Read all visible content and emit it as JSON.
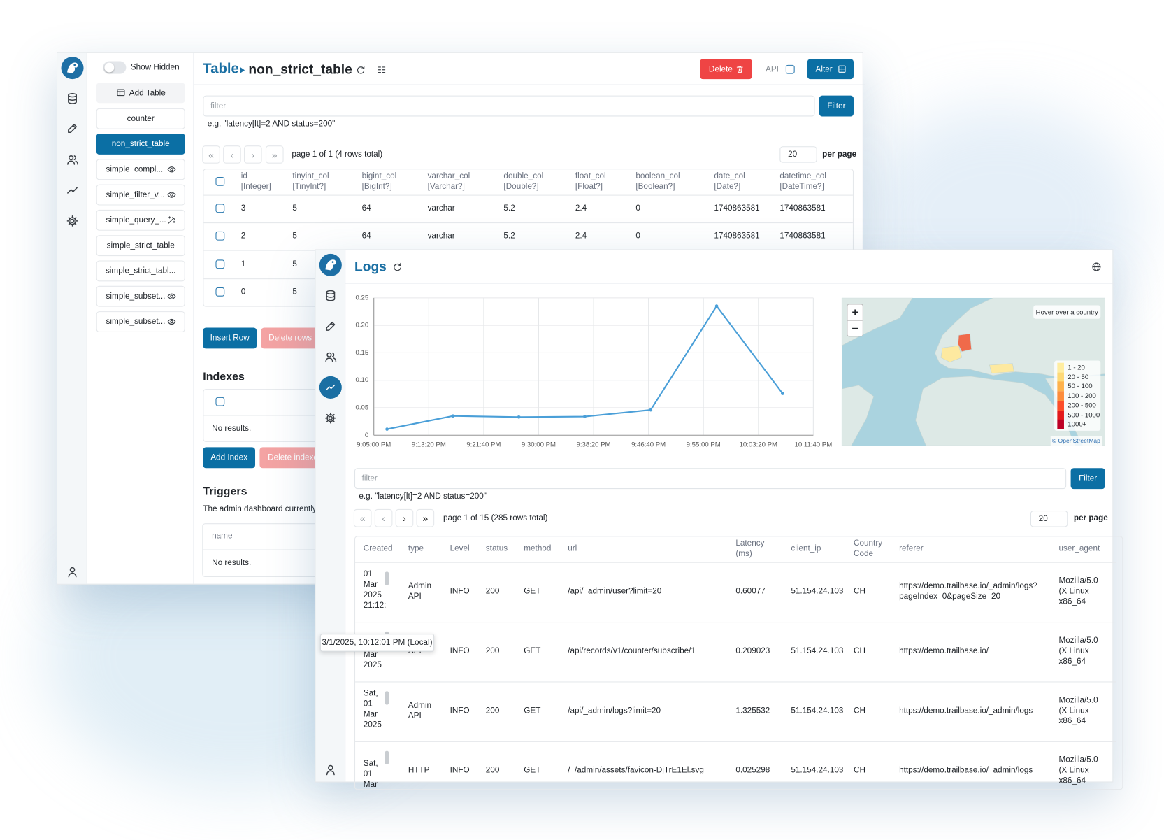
{
  "table_window": {
    "sidebar": {
      "toggle_label": "Show Hidden",
      "add_table": "Add Table",
      "tables": [
        "counter",
        "non_strict_table",
        "simple_compl...",
        "simple_filter_v...",
        "simple_query_...",
        "simple_strict_table",
        "simple_strict_tabl...",
        "simple_subset...",
        "simple_subset..."
      ]
    },
    "header": {
      "section": "Table",
      "table_name": "non_strict_table",
      "delete": "Delete",
      "api": "API",
      "alter": "Alter"
    },
    "filter": {
      "placeholder": "filter",
      "button": "Filter",
      "hint": "e.g. \"latency[lt]=2 AND status=200\""
    },
    "pagination": {
      "buttons": [
        "«",
        "‹",
        "›",
        "»"
      ],
      "info": "page 1 of 1 (4 rows total)",
      "page_size": "20",
      "per_page": "per page"
    },
    "table": {
      "columns": [
        {
          "name": "id",
          "type": "[Integer]"
        },
        {
          "name": "tinyint_col",
          "type": "[TinyInt?]"
        },
        {
          "name": "bigint_col",
          "type": "[BigInt?]"
        },
        {
          "name": "varchar_col",
          "type": "[Varchar?]"
        },
        {
          "name": "double_col",
          "type": "[Double?]"
        },
        {
          "name": "float_col",
          "type": "[Float?]"
        },
        {
          "name": "boolean_col",
          "type": "[Boolean?]"
        },
        {
          "name": "date_col",
          "type": "[Date?]"
        },
        {
          "name": "datetime_col",
          "type": "[DateTime?]"
        }
      ],
      "rows": [
        [
          "3",
          "5",
          "64",
          "varchar",
          "5.2",
          "2.4",
          "0",
          "1740863581",
          "1740863581"
        ],
        [
          "2",
          "5",
          "64",
          "varchar",
          "5.2",
          "2.4",
          "0",
          "1740863581",
          "1740863581"
        ],
        [
          "1",
          "5"
        ],
        [
          "0",
          "5"
        ]
      ]
    },
    "row_actions": {
      "insert": "Insert Row",
      "delete": "Delete rows"
    },
    "indexes": {
      "title": "Indexes",
      "empty": "No results.",
      "add": "Add Index",
      "delete": "Delete indexe"
    },
    "triggers": {
      "title": "Triggers",
      "description": "The admin dashboard currently",
      "column": "name",
      "empty": "No results."
    }
  },
  "logs_window": {
    "header": {
      "title": "Logs"
    },
    "chart": {
      "type": "line",
      "x": [
        "9:07:00 PM",
        "9:17:00 PM",
        "9:27:00 PM",
        "9:37:00 PM",
        "9:47:00 PM",
        "9:57:00 PM",
        "10:07:00 PM"
      ],
      "series": [
        {
          "color": "#4a9fd8",
          "values": [
            0.011,
            0.035,
            0.033,
            0.034,
            0.046,
            0.235,
            0.076
          ]
        }
      ],
      "xlim": [
        "9:05:00 PM",
        "10:11:40 PM"
      ],
      "xticks": [
        "9:05:00 PM",
        "9:13:20 PM",
        "9:21:40 PM",
        "9:30:00 PM",
        "9:38:20 PM",
        "9:46:40 PM",
        "9:55:00 PM",
        "10:03:20 PM",
        "10:11:40 PM"
      ],
      "ylim": [
        0,
        0.25
      ],
      "yticks": [
        0,
        0.05,
        {
          "value": 0.1,
          "label": "0.10"
        },
        0.15,
        {
          "value": 0.2,
          "label": "0.20"
        },
        0.25
      ],
      "grid": true
    },
    "map": {
      "zoom_in": "+",
      "zoom_out": "−",
      "hover_hint": "Hover over a country",
      "attribution": "© OpenStreetMap",
      "legend": [
        {
          "label": "1 - 20",
          "color": "#ffeda0"
        },
        {
          "label": "20 - 50",
          "color": "#fed976"
        },
        {
          "label": "50 - 100",
          "color": "#feb24c"
        },
        {
          "label": "100 - 200",
          "color": "#fd8d3c"
        },
        {
          "label": "200 - 500",
          "color": "#fc4e2a"
        },
        {
          "label": "500 - 1000",
          "color": "#e31a1c"
        },
        {
          "label": "1000+",
          "color": "#bd0026"
        }
      ]
    },
    "filter": {
      "placeholder": "filter",
      "button": "Filter",
      "hint": "e.g. \"latency[lt]=2 AND status=200\""
    },
    "pagination": {
      "buttons": [
        "«",
        "‹",
        "›",
        "»"
      ],
      "info": "page 1 of 15 (285 rows total)",
      "page_size": "20",
      "per_page": "per page"
    },
    "table": {
      "columns": [
        "Created",
        "type",
        "Level",
        "status",
        "method",
        "url",
        "Latency (ms)",
        "client_ip",
        "Country Code",
        "referer",
        "user_agent"
      ],
      "rows": [
        [
          "01 Mar 2025 21:12:",
          "Admin API",
          "INFO",
          "200",
          "GET",
          "/api/_admin/user?limit=20",
          "0.60077",
          "51.154.24.103",
          "CH",
          "https://demo.trailbase.io/_admin/logs?pageIndex=0&pageSize=20",
          "Mozilla/5.0 (X Linux x86_64"
        ],
        [
          "Mar 2025",
          "API",
          "INFO",
          "200",
          "GET",
          "/api/records/v1/counter/subscribe/1",
          "0.209023",
          "51.154.24.103",
          "CH",
          "https://demo.trailbase.io/",
          "Mozilla/5.0 (X Linux x86_64"
        ],
        [
          "Sat, 01 Mar 2025",
          "Admin API",
          "INFO",
          "200",
          "GET",
          "/api/_admin/logs?limit=20",
          "1.325532",
          "51.154.24.103",
          "CH",
          "https://demo.trailbase.io/_admin/logs",
          "Mozilla/5.0 (X Linux x86_64"
        ],
        [
          "Sat, 01 Mar",
          "HTTP",
          "INFO",
          "200",
          "GET",
          "/_/admin/assets/favicon-DjTrE1El.svg",
          "0.025298",
          "51.154.24.103",
          "CH",
          "https://demo.trailbase.io/_admin/logs",
          "Mozilla/5.0 (X Linux x86_64"
        ]
      ]
    },
    "tooltip": "3/1/2025, 10:12:01 PM (Local)"
  }
}
